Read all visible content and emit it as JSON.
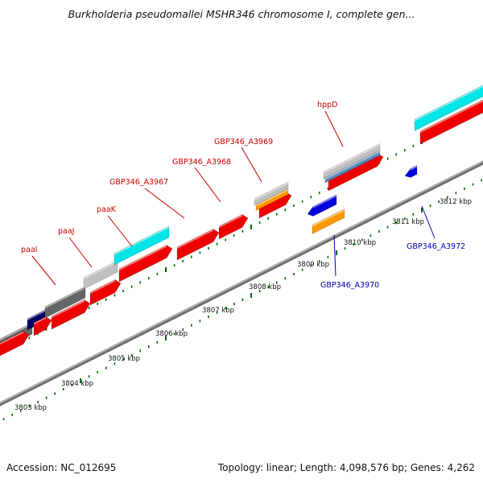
{
  "title": "Burkholderia pseudomallei MSHR346 chromosome I, complete gen...",
  "accession": "Accession: NC_012695",
  "topology": "Topology: linear; Length: 4,098,576 bp; Genes: 4,262",
  "scale": {
    "ticks": [
      {
        "label": "3803 kbp"
      },
      {
        "label": "3804 kbp"
      },
      {
        "label": "3805 kbp"
      },
      {
        "label": "3806 kbp"
      },
      {
        "label": "3807 kbp"
      },
      {
        "label": "3808 kbp"
      },
      {
        "label": "3809 kbp"
      },
      {
        "label": "3810 kbp"
      },
      {
        "label": "3811 kbp"
      },
      {
        "label": "3812 kbp"
      }
    ]
  },
  "gene_labels": [
    {
      "name": "paaI",
      "color": "#cc0000"
    },
    {
      "name": "paaJ",
      "color": "#cc0000"
    },
    {
      "name": "paaK",
      "color": "#cc0000"
    },
    {
      "name": "GBP346_A3967",
      "color": "#cc0000"
    },
    {
      "name": "GBP346_A3968",
      "color": "#cc0000"
    },
    {
      "name": "GBP346_A3969",
      "color": "#cc0000"
    },
    {
      "name": "hppD",
      "color": "#cc0000"
    },
    {
      "name": "GBP346_A3970",
      "color": "#0000aa"
    },
    {
      "name": "GBP346_A3972",
      "color": "#0000aa"
    }
  ],
  "colors": {
    "gene_red": "#ee0000",
    "gene_blue": "#0000dd",
    "orange": "#ff9900",
    "cyan": "#00e5e5",
    "dark_gray": "#666666",
    "light_gray": "#c0c0c0",
    "navy": "#000066",
    "steel_blue": "#5588bb",
    "tick_green": "#006600",
    "backbone": "#888888"
  }
}
